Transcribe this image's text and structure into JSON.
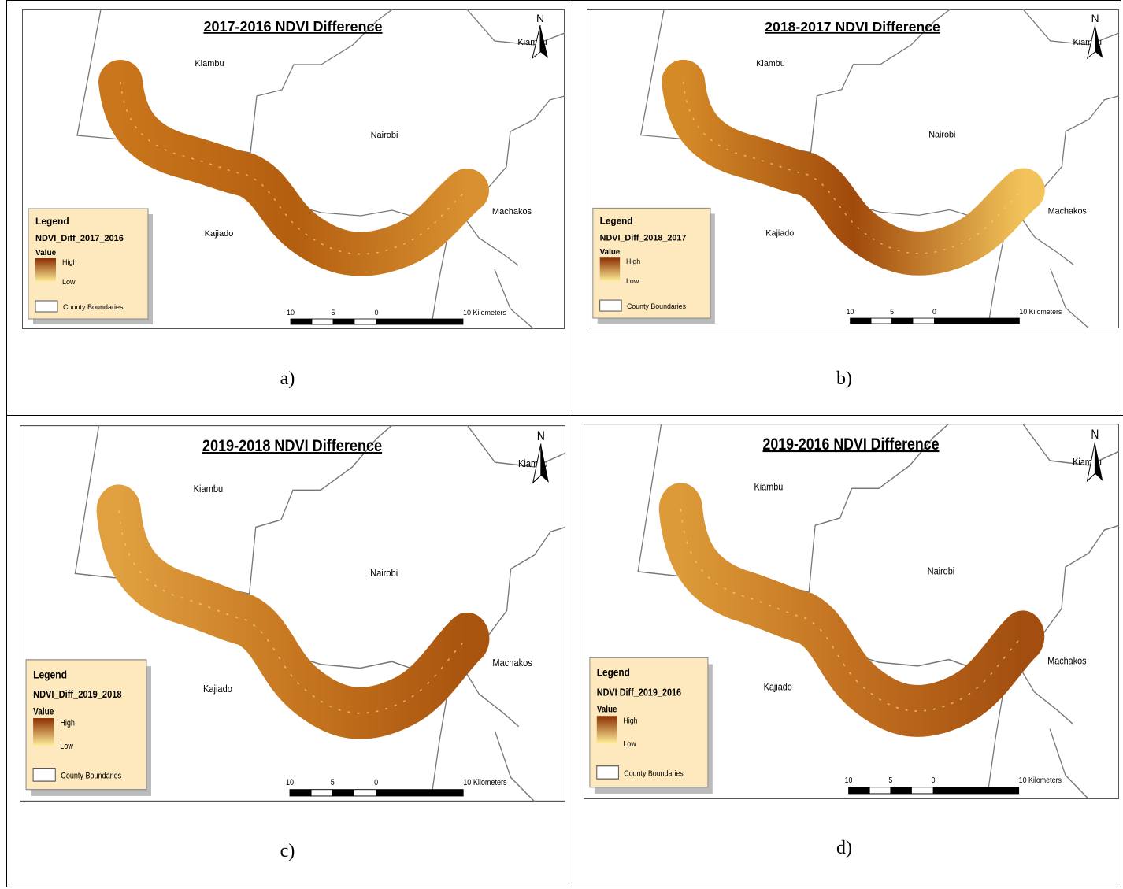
{
  "panels": [
    {
      "title": "2017-2016 NDVI Difference",
      "north": "N",
      "places": [
        "Kiambu",
        "Kiambu",
        "Nairobi",
        "Kajiado",
        "Machakos"
      ],
      "legend": {
        "title": "Legend",
        "layer": "NDVI_Diff_2017_2016",
        "field": "Value",
        "high": "High",
        "low": "Low",
        "boundaries": "County Boundaries"
      },
      "scale": [
        "10",
        "5",
        "0",
        "10 Kilometers"
      ],
      "caption": "a)"
    },
    {
      "title": "2018-2017 NDVI Difference",
      "north": "N",
      "places": [
        "Kiambu",
        "Kiambu",
        "Nairobi",
        "Kajiado",
        "Machakos"
      ],
      "legend": {
        "title": "Legend",
        "layer": "NDVI_Diff_2018_2017",
        "field": "Value",
        "high": "High",
        "low": "Low",
        "boundaries": "County Boundaries"
      },
      "scale": [
        "10",
        "5",
        "0",
        "10 Kilometers"
      ],
      "caption": "b)"
    },
    {
      "title": "2019-2018 NDVI Difference",
      "north": "N",
      "places": [
        "Kiambu",
        "Kiambu",
        "Nairobi",
        "Kajiado",
        "Machakos"
      ],
      "legend": {
        "title": "Legend",
        "layer": "NDVI_Diff_2019_2018",
        "field": "Value",
        "high": "High",
        "low": "Low",
        "boundaries": "County Boundaries"
      },
      "scale": [
        "10",
        "5",
        "0",
        "10 Kilometers"
      ],
      "caption": "c)"
    },
    {
      "title": "2019-2016 NDVI Difference",
      "north": "N",
      "places": [
        "Kiambu",
        "Kiambu",
        "Nairobi",
        "Kajiado",
        "Machakos"
      ],
      "legend": {
        "title": "Legend",
        "layer": "NDVI Diff_2019_2016",
        "field": "Value",
        "high": "High",
        "low": "Low",
        "boundaries": "County Boundaries"
      },
      "scale": [
        "10",
        "5",
        "0",
        "10 Kilometers"
      ],
      "caption": "d)"
    }
  ]
}
